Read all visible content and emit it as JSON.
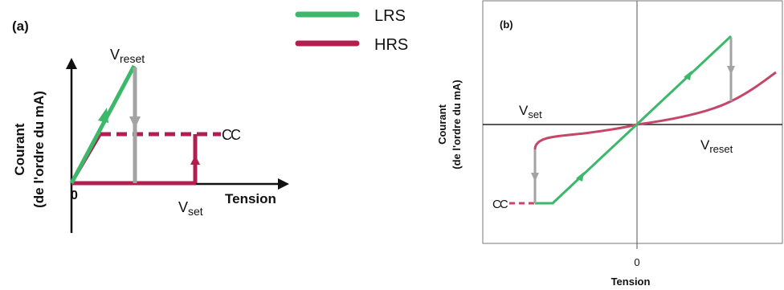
{
  "colors": {
    "lrs": "#3cb86a",
    "hrs": "#b21f4f",
    "arrow_gray": "#a3a3a3",
    "axis": "#111111",
    "frame": "#777777"
  },
  "legend": {
    "lrs_label": "LRS",
    "hrs_label": "HRS"
  },
  "panel_a": {
    "tag": "(a)",
    "ylabel_line1": "Courant",
    "ylabel_line2": "(de l'ordre du mA)",
    "xlabel": "Tension",
    "origin": "0",
    "vreset_main": "V",
    "vreset_sub": "reset",
    "vset_main": "V",
    "vset_sub": "set",
    "cc": "CC"
  },
  "panel_b": {
    "tag": "(b)",
    "ylabel_line1": "Courant",
    "ylabel_line2": "(de l'ordre du mA)",
    "xlabel": "Tension",
    "origin_tick": "0",
    "vset_main": "V",
    "vset_sub": "set",
    "vreset_main": "V",
    "vreset_sub": "reset",
    "cc": "CC"
  }
}
